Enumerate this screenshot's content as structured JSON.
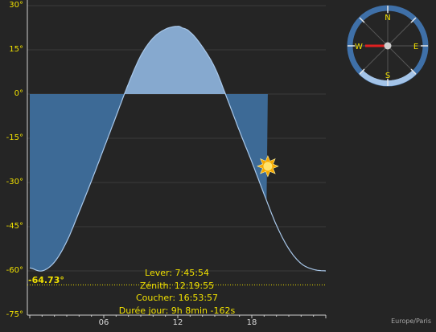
{
  "chart_data": {
    "type": "area",
    "title": "",
    "xlabel": "",
    "ylabel": "",
    "x_ticks": [
      "06",
      "12",
      "18"
    ],
    "y_ticks": [
      "30°",
      "15°",
      "0°",
      "-15°",
      "-30°",
      "-45°",
      "-60°",
      "-75°"
    ],
    "ylim": [
      -75,
      30
    ],
    "xlim": [
      0,
      24
    ],
    "grid": true,
    "series": [
      {
        "x": [
          0,
          1,
          2,
          3,
          4,
          5,
          6,
          7,
          8,
          9,
          10,
          11,
          12,
          12.33,
          13,
          14,
          15,
          16,
          17,
          18,
          19,
          20,
          21,
          22,
          23,
          24
        ],
        "values": [
          -59,
          -60,
          -57,
          -50,
          -40,
          -29.5,
          -18.5,
          -7.5,
          3.5,
          13,
          19,
          22,
          23,
          22.5,
          21,
          16,
          9,
          -1.5,
          -12.5,
          -23,
          -34,
          -44.5,
          -52.5,
          -57.5,
          -59.5,
          -60
        ]
      }
    ],
    "current_time": 19.3,
    "current_elevation": -24.5,
    "min_elevation": -64.73,
    "night_end_time": 19.3
  },
  "labels": {
    "min_elevation_label": "-64.73°",
    "lever": "Lever: 7:45:54",
    "zenith": "Zénith: 12:19:55",
    "coucher": "Coucher: 16:53:57",
    "duree": "Durée jour: 9h 8min -162s",
    "timezone": "Europe/Paris"
  },
  "compass": {
    "north": "N",
    "south": "S",
    "east": "E",
    "west": "W",
    "azimuth_deg": 270
  },
  "colors": {
    "tick_yellow": "#f0e000",
    "night_fill": "#3d6a96",
    "day_fill": "#86a9cf",
    "compass_ring": "#3f70a8",
    "compass_needle": "#e02020"
  }
}
